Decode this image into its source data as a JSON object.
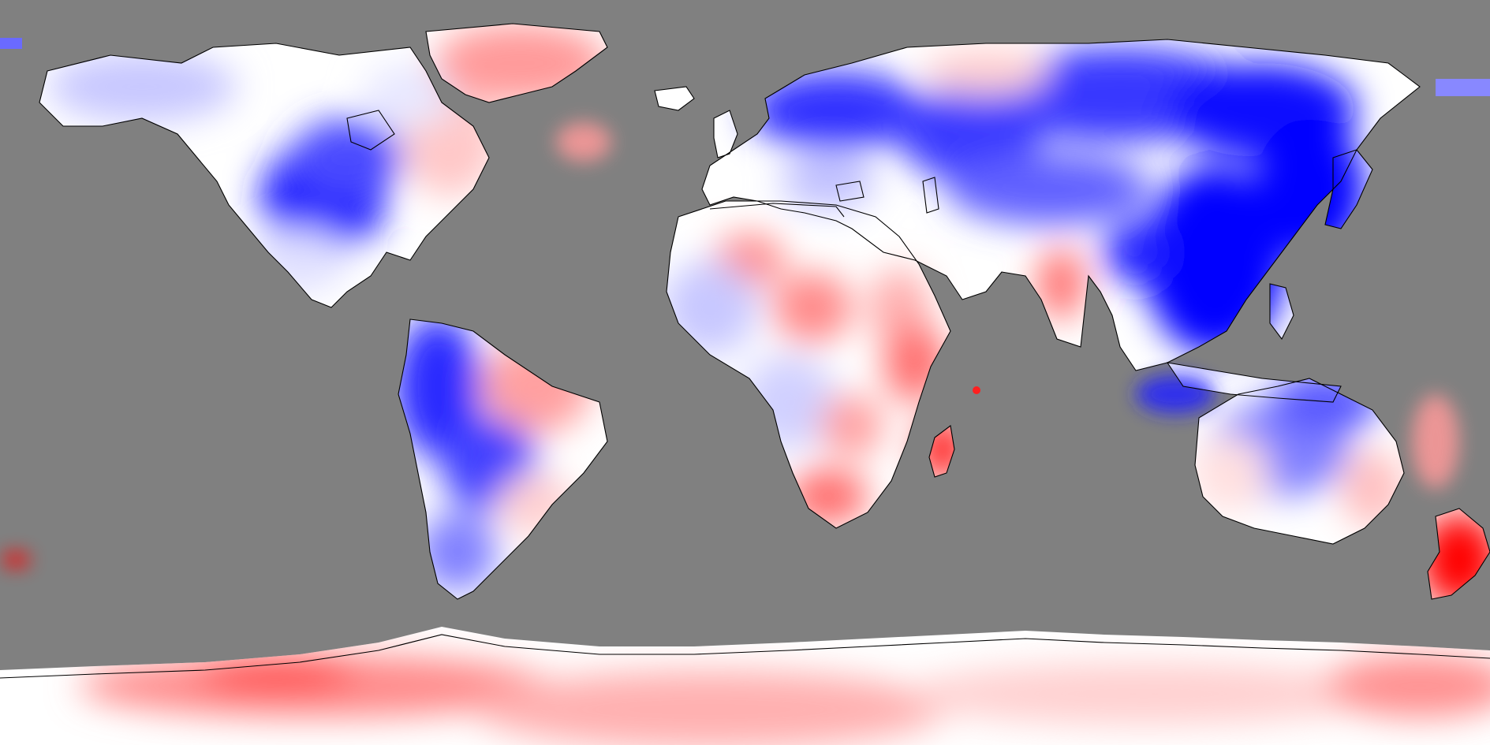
{
  "map": {
    "projection": "equirectangular",
    "background_color": "#808080",
    "anomaly_colors": {
      "strong_negative": "#0000ff",
      "negative": "#6a6aff",
      "weak_negative": "#d8d8ff",
      "neutral": "#ffffff",
      "weak_positive": "#ffd0d0",
      "positive": "#ff8080",
      "strong_positive": "#ff0000"
    },
    "coastline_color": "#000000"
  }
}
